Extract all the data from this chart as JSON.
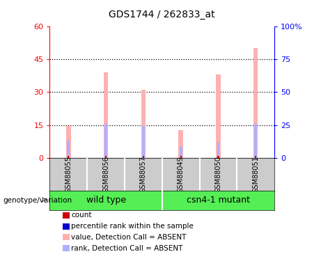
{
  "title": "GDS1744 / 262833_at",
  "samples": [
    "GSM88055",
    "GSM88056",
    "GSM88057",
    "GSM88049",
    "GSM88050",
    "GSM88051"
  ],
  "value_absent": [
    14.5,
    39.0,
    31.0,
    12.5,
    38.0,
    50.0
  ],
  "rank_absent_left_scale": [
    8.0,
    15.5,
    14.5,
    5.0,
    7.0,
    15.5
  ],
  "count_red": [
    1.0,
    1.0,
    1.0,
    1.0,
    1.0,
    1.0
  ],
  "percentile_blue": [
    8.0,
    15.5,
    14.5,
    5.0,
    7.0,
    15.5
  ],
  "ylim_left": [
    0,
    60
  ],
  "ylim_right": [
    0,
    100
  ],
  "yticks_left": [
    0,
    15,
    30,
    45,
    60
  ],
  "yticks_right": [
    0,
    25,
    50,
    75,
    100
  ],
  "ytick_labels_right": [
    "0",
    "25",
    "50",
    "75",
    "100%"
  ],
  "pink_color": "#ffb0b0",
  "lightblue_color": "#b0b0ff",
  "red_color": "#cc0000",
  "blue_color": "#0000cc",
  "sample_box_color": "#cccccc",
  "green_color": "#55ee55",
  "legend_items": [
    {
      "label": "count",
      "color": "#cc0000"
    },
    {
      "label": "percentile rank within the sample",
      "color": "#0000cc"
    },
    {
      "label": "value, Detection Call = ABSENT",
      "color": "#ffb0b0"
    },
    {
      "label": "rank, Detection Call = ABSENT",
      "color": "#b0b0ff"
    }
  ],
  "left_label": "genotype/variation"
}
